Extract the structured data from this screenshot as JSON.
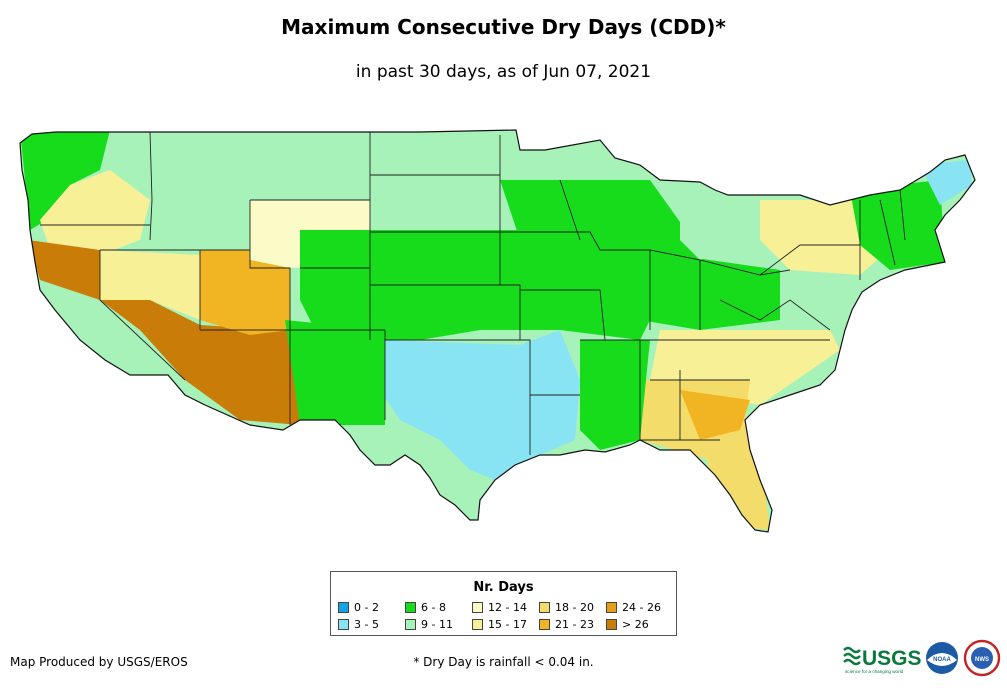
{
  "title": "Maximum Consecutive Dry Days (CDD)*",
  "subtitle": "in past 30 days, as of Jun 07, 2021",
  "legend": {
    "title": "Nr. Days",
    "items": [
      {
        "label": "0 - 2",
        "color": "#12a3e8"
      },
      {
        "label": "3 - 5",
        "color": "#88e4f2"
      },
      {
        "label": "6 - 8",
        "color": "#16dc1c"
      },
      {
        "label": "9 - 11",
        "color": "#a7f2b8"
      },
      {
        "label": "12 - 14",
        "color": "#fbfbc8"
      },
      {
        "label": "15 - 17",
        "color": "#f7f096"
      },
      {
        "label": "18 - 20",
        "color": "#f3dc6a"
      },
      {
        "label": "21 - 23",
        "color": "#f1b524"
      },
      {
        "label": "24 - 26",
        "color": "#e69e18"
      },
      {
        "label": "> 26",
        "color": "#c97c08"
      }
    ]
  },
  "footer": {
    "credit": "Map Produced by USGS/EROS",
    "footnote": "* Dry Day is rainfall < 0.04 in."
  },
  "logos": {
    "usgs": "USGS",
    "usgs_tagline": "science for a changing world",
    "noaa": "NOAA",
    "nws": "NWS"
  }
}
